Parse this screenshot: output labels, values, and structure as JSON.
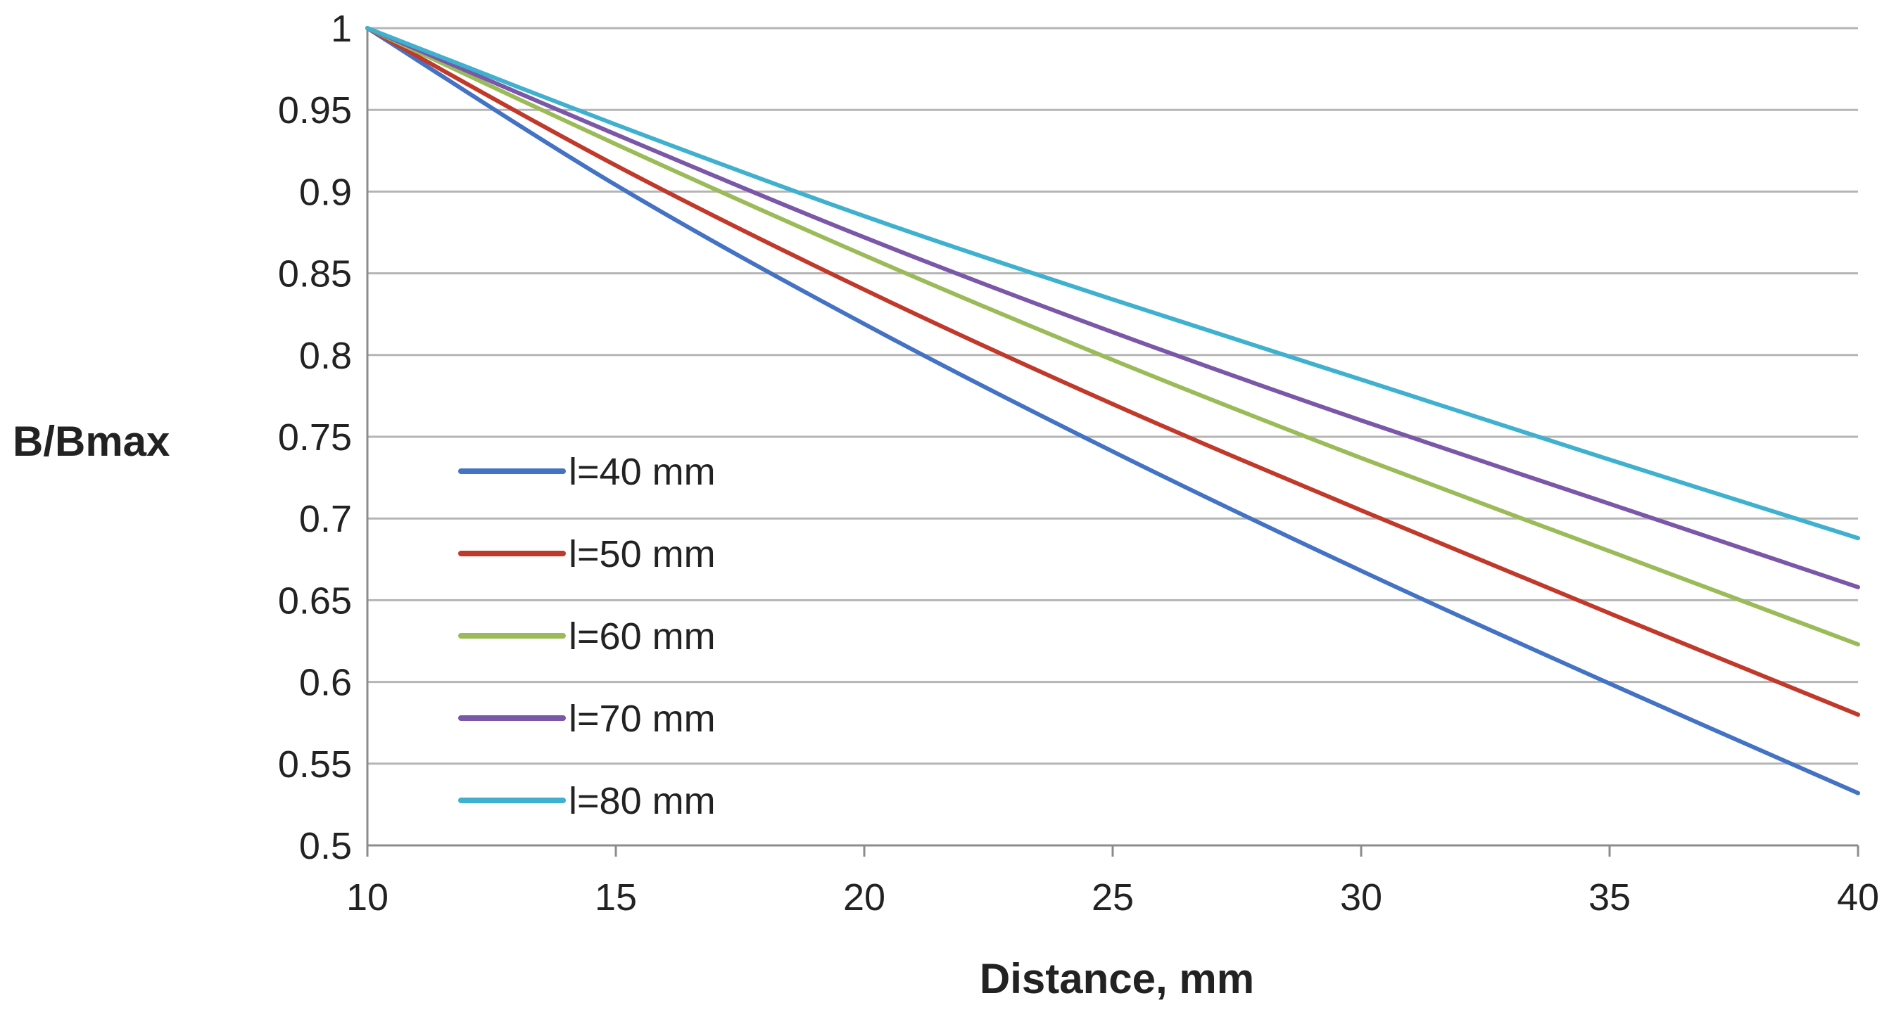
{
  "chart_data": {
    "type": "line",
    "title": "",
    "xlabel": "Distance, mm",
    "ylabel": "B/Bmax",
    "xlim": [
      10,
      40
    ],
    "ylim": [
      0.5,
      1
    ],
    "xticks": [
      10,
      15,
      20,
      25,
      30,
      35,
      40
    ],
    "yticks": [
      0.5,
      0.55,
      0.6,
      0.65,
      0.7,
      0.75,
      0.8,
      0.85,
      0.9,
      0.95,
      1
    ],
    "xtick_labels": [
      "10",
      "15",
      "20",
      "25",
      "30",
      "35",
      "40"
    ],
    "ytick_labels": [
      "0.5",
      "0.55",
      "0.6",
      "0.65",
      "0.7",
      "0.75",
      "0.8",
      "0.85",
      "0.9",
      "0.95",
      "1"
    ],
    "grid": "horizontal",
    "legend_position": "lower-left",
    "x": [
      10,
      15,
      20,
      25,
      30,
      35,
      40
    ],
    "series": [
      {
        "name": "l=40 mm",
        "color": "#4472C4",
        "values": [
          1.0,
          0.904,
          0.819,
          0.741,
          0.668,
          0.599,
          0.532
        ]
      },
      {
        "name": "l=50 mm",
        "color": "#C0392B",
        "values": [
          1.0,
          0.916,
          0.84,
          0.77,
          0.705,
          0.642,
          0.58
        ]
      },
      {
        "name": "l=60 mm",
        "color": "#9BBB59",
        "values": [
          1.0,
          0.929,
          0.861,
          0.797,
          0.737,
          0.68,
          0.623
        ]
      },
      {
        "name": "l=70 mm",
        "color": "#7B57A8",
        "values": [
          1.0,
          0.935,
          0.872,
          0.814,
          0.76,
          0.709,
          0.658
        ]
      },
      {
        "name": "l=80 mm",
        "color": "#3FB1CE",
        "values": [
          1.0,
          0.941,
          0.885,
          0.834,
          0.785,
          0.736,
          0.688
        ]
      }
    ]
  }
}
